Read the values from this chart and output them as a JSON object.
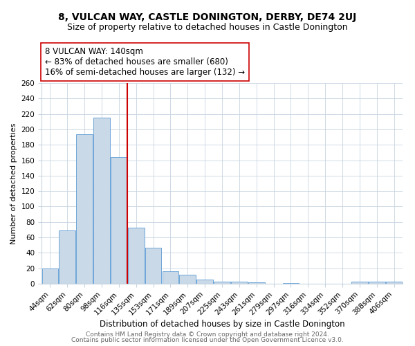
{
  "title": "8, VULCAN WAY, CASTLE DONINGTON, DERBY, DE74 2UJ",
  "subtitle": "Size of property relative to detached houses in Castle Donington",
  "xlabel": "Distribution of detached houses by size in Castle Donington",
  "ylabel": "Number of detached properties",
  "bar_labels": [
    "44sqm",
    "62sqm",
    "80sqm",
    "98sqm",
    "116sqm",
    "135sqm",
    "153sqm",
    "171sqm",
    "189sqm",
    "207sqm",
    "225sqm",
    "243sqm",
    "261sqm",
    "279sqm",
    "297sqm",
    "316sqm",
    "334sqm",
    "352sqm",
    "370sqm",
    "388sqm",
    "406sqm"
  ],
  "bar_heights": [
    20,
    69,
    194,
    215,
    164,
    73,
    47,
    16,
    12,
    5,
    3,
    3,
    2,
    0,
    1,
    0,
    0,
    0,
    3,
    3,
    3
  ],
  "bar_color": "#c9d9e8",
  "bar_edge_color": "#5b9bd5",
  "vline_color": "#cc0000",
  "annotation_line1": "8 VULCAN WAY: 140sqm",
  "annotation_line2": "← 83% of detached houses are smaller (680)",
  "annotation_line3": "16% of semi-detached houses are larger (132) →",
  "annotation_box_color": "#ffffff",
  "annotation_box_edge": "#cc0000",
  "ylim": [
    0,
    260
  ],
  "yticks": [
    0,
    20,
    40,
    60,
    80,
    100,
    120,
    140,
    160,
    180,
    200,
    220,
    240,
    260
  ],
  "footer1": "Contains HM Land Registry data © Crown copyright and database right 2024.",
  "footer2": "Contains public sector information licensed under the Open Government Licence v3.0.",
  "bg_color": "#ffffff",
  "grid_color": "#c8d4e0",
  "title_fontsize": 10,
  "subtitle_fontsize": 9,
  "xlabel_fontsize": 8.5,
  "ylabel_fontsize": 8,
  "tick_fontsize": 7.5,
  "annot_fontsize": 8.5,
  "footer_fontsize": 6.5
}
